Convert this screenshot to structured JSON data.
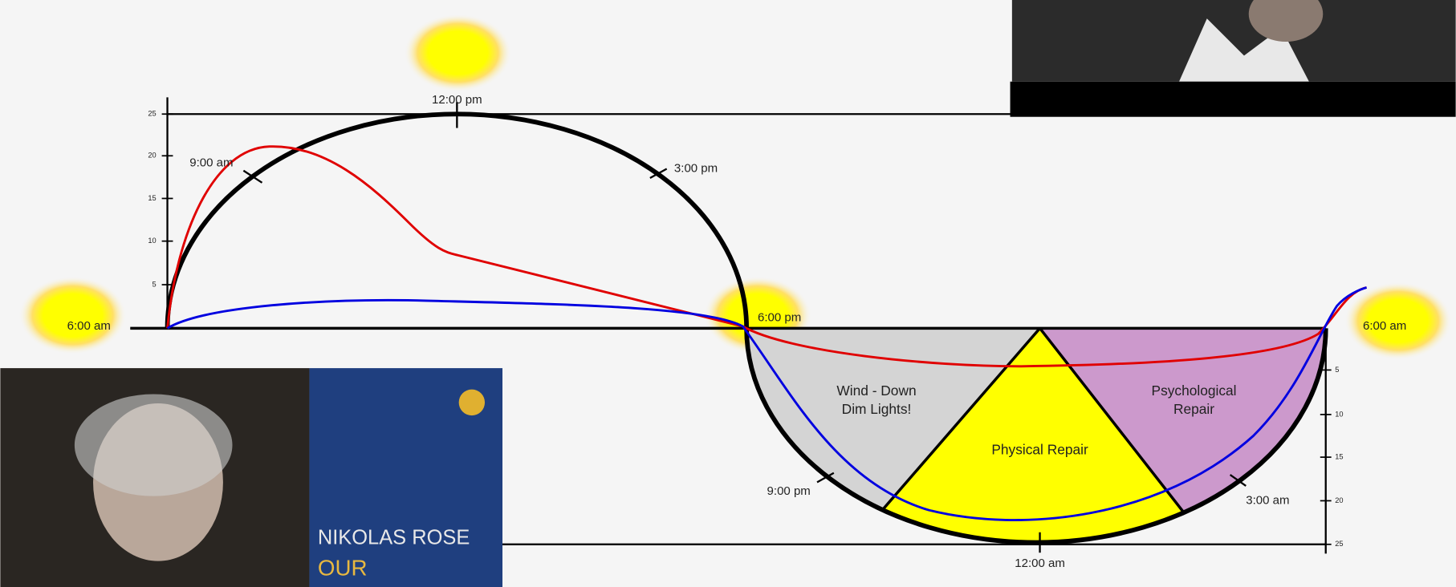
{
  "time_labels": {
    "noon": "12:00 pm",
    "morning": "9:00 am",
    "afternoon": "3:00 pm",
    "sunrise_left": "6:00 am",
    "sunset": "6:00 pm",
    "sunrise_right": "6:00 am",
    "evening": "9:00 pm",
    "midnight": "12:00 am",
    "night": "3:00 am"
  },
  "left_axis_ticks": [
    25,
    20,
    15,
    10,
    5
  ],
  "right_axis_ticks": [
    5,
    10,
    15,
    20,
    25
  ],
  "zones": [
    "Wind - Down\nDim Lights!",
    "Physical Repair",
    "Psychological\nRepair"
  ],
  "book_cover": {
    "author": "NIKOLAS ROSE",
    "title": "OUR"
  }
}
